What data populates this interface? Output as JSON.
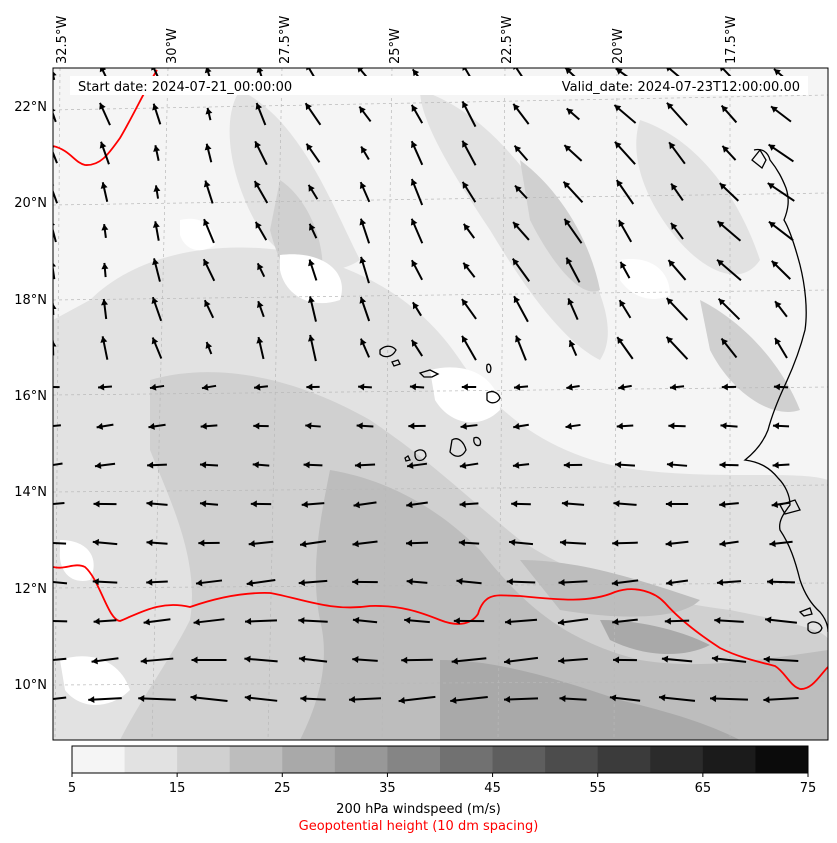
{
  "header": {
    "start_date": "Start date: 2024-07-21_00:00:00",
    "valid_date": "Valid_date: 2024-07-23T12:00:00.00"
  },
  "axes": {
    "longitude_labels": [
      "32.5°W",
      "30°W",
      "27.5°W",
      "25°W",
      "22.5°W",
      "20°W",
      "17.5°W"
    ],
    "latitude_labels": [
      "22°N",
      "20°N",
      "18°N",
      "16°N",
      "14°N",
      "12°N",
      "10°N"
    ]
  },
  "colorbar": {
    "tick_labels": [
      "5",
      "15",
      "25",
      "35",
      "45",
      "55",
      "65",
      "75"
    ],
    "colors": [
      "#f5f5f5",
      "#e2e2e2",
      "#d0d0d0",
      "#bdbdbd",
      "#a9a9a9",
      "#989898",
      "#858585",
      "#717171",
      "#5e5e5e",
      "#4c4c4c",
      "#3b3b3b",
      "#2b2b2b",
      "#1b1b1b",
      "#0b0b0b"
    ],
    "label": "200 hPa windspeed (m/s)"
  },
  "overlay": {
    "label": "Geopotential height (10 dm spacing)",
    "color": "#ff0000"
  },
  "map": {
    "ocean_color": "#f5f5f5",
    "arrow_color": "#000000",
    "coastline_color": "#000000"
  }
}
